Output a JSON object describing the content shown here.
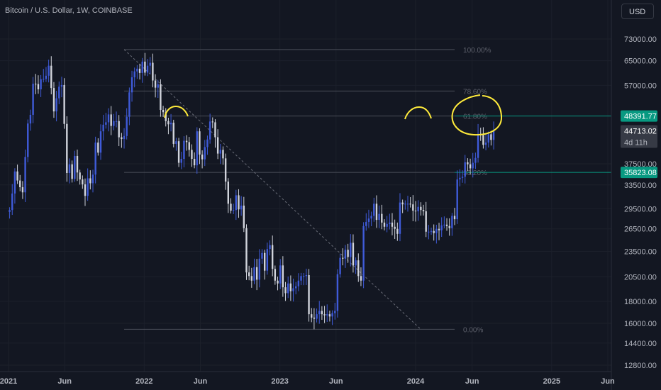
{
  "chart_data": {
    "type": "candlestick",
    "title": "Bitcoin / U.S. Dollar, 1W, COINBASE",
    "currency": "USD",
    "y_scale": "log",
    "y_ticks": [
      "73000.00",
      "65000.00",
      "57000.00",
      "37500.00",
      "33500.00",
      "29500.00",
      "26500.00",
      "23500.00",
      "20500.00",
      "18000.00",
      "16000.00",
      "14400.00",
      "12800.00"
    ],
    "x_ticks": [
      {
        "label": "2021",
        "date": "2021-01-01"
      },
      {
        "label": "Jun",
        "date": "2021-06-01"
      },
      {
        "label": "2022",
        "date": "2022-01-01"
      },
      {
        "label": "Jun",
        "date": "2022-06-01"
      },
      {
        "label": "2023",
        "date": "2023-01-01"
      },
      {
        "label": "Jun",
        "date": "2023-06-01"
      },
      {
        "label": "2024",
        "date": "2024-01-01"
      },
      {
        "label": "Jun",
        "date": "2024-06-01"
      },
      {
        "label": "2025",
        "date": "2025-01-01"
      },
      {
        "label": "Jun",
        "date": "2025-06-01"
      }
    ],
    "fib_levels": [
      {
        "label": "100.00%",
        "price": 69000
      },
      {
        "label": "78.60%",
        "price": 55300
      },
      {
        "label": "61.80%",
        "price": 48391.77
      },
      {
        "label": "38.20%",
        "price": 35823.08
      },
      {
        "label": "0.00%",
        "price": 15500
      }
    ],
    "price_tags": [
      {
        "value": "48391.77",
        "price": 48391.77,
        "color": "#089981"
      },
      {
        "value": "44713.02",
        "price": 44713.02,
        "sub": "4d 11h",
        "color": "#363a45"
      },
      {
        "value": "35823.08",
        "price": 35823.08,
        "color": "#089981"
      }
    ],
    "trendline": {
      "from": {
        "date": "2021-11-08",
        "price": 69000
      },
      "to": {
        "date": "2024-01-15",
        "price": 15500
      }
    },
    "weekly_closes": [
      29300,
      32000,
      36000,
      34300,
      33100,
      32200,
      38900,
      46500,
      48700,
      57500,
      57400,
      55800,
      58900,
      59000,
      60000,
      63300,
      56200,
      49600,
      53200,
      56600,
      57100,
      46400,
      35700,
      37400,
      34600,
      39100,
      35800,
      34500,
      33600,
      31600,
      34700,
      33800,
      35400,
      42000,
      39800,
      44600,
      46200,
      46800,
      48800,
      45900,
      47100,
      47100,
      43200,
      42800,
      43500,
      48200,
      54900,
      59500,
      61400,
      62300,
      60900,
      64700,
      61000,
      63300,
      64300,
      58500,
      56300,
      57300,
      50000,
      49400,
      47100,
      46300,
      46700,
      41700,
      42300,
      37700,
      38500,
      42400,
      42100,
      40400,
      38500,
      37200,
      44600,
      39400,
      38400,
      41000,
      42700,
      47000,
      46800,
      43200,
      39600,
      40400,
      38600,
      34100,
      30300,
      29200,
      29300,
      31700,
      29400,
      30000,
      26600,
      21000,
      20600,
      20100,
      21600,
      20200,
      22600,
      23300,
      21200,
      23800,
      24300,
      21400,
      20100,
      19800,
      21800,
      19400,
      18800,
      19800,
      19000,
      19300,
      19500,
      20100,
      20600,
      20600,
      20700,
      16800,
      16500,
      16400,
      16800,
      17100,
      16800,
      16700,
      16800,
      16600,
      16900,
      17100,
      20800,
      22700,
      22600,
      23700,
      22800,
      24600,
      21800,
      22400,
      20600,
      20100,
      26900,
      27500,
      28000,
      28400,
      30300,
      27800,
      28700,
      27400,
      26800,
      27200,
      27400,
      26800,
      26500,
      25800,
      30500,
      30200,
      30300,
      30300,
      30200,
      29200,
      29100,
      29800,
      29300,
      29100,
      26100,
      26100,
      26200,
      25900,
      26500,
      26300,
      27000,
      27100,
      26900,
      26600,
      28400,
      27900,
      34500,
      34800,
      35000,
      37800,
      37400,
      36600,
      37700,
      38700,
      44000,
      43700,
      41500,
      42000,
      43900,
      42600,
      44713
    ]
  }
}
